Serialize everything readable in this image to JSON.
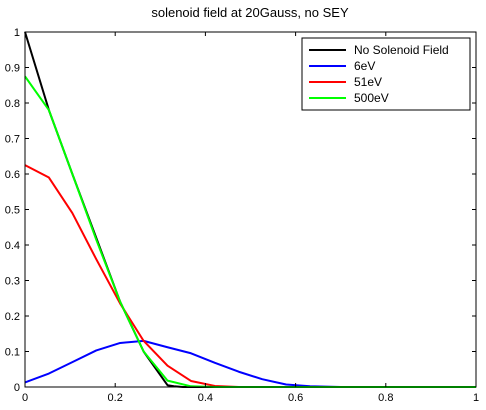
{
  "chart_data": {
    "type": "line",
    "title": "solenoid field at 20Gauss, no SEY",
    "xlabel": "",
    "ylabel": "",
    "xlim": [
      0,
      1
    ],
    "ylim": [
      0,
      1
    ],
    "xticks": [
      0,
      0.2,
      0.4,
      0.6,
      0.8,
      1
    ],
    "yticks": [
      0,
      0.1,
      0.2,
      0.3,
      0.4,
      0.5,
      0.6,
      0.7,
      0.8,
      0.9,
      1
    ],
    "xtick_labels": [
      "0",
      "0.2",
      "0.4",
      "0.6",
      "0.8",
      "1"
    ],
    "ytick_labels": [
      "0",
      "0.1",
      "0.2",
      "0.3",
      "0.4",
      "0.5",
      "0.6",
      "0.7",
      "0.8",
      "0.9",
      "1"
    ],
    "grid": false,
    "legend_position": "top-right",
    "series": [
      {
        "name": "No Solenoid Field",
        "color": "#000000",
        "x": [
          0,
          0.053,
          0.105,
          0.158,
          0.211,
          0.263,
          0.316,
          0.33,
          0.35,
          0.4,
          0.5,
          0.6,
          1.0
        ],
        "y": [
          1.0,
          0.78,
          0.6,
          0.42,
          0.24,
          0.1,
          0.005,
          0.002,
          0.0,
          0.0,
          0.0,
          0.0,
          0.0
        ]
      },
      {
        "name": "6eV",
        "color": "#0000ff",
        "x": [
          0,
          0.053,
          0.105,
          0.158,
          0.211,
          0.263,
          0.316,
          0.368,
          0.421,
          0.474,
          0.526,
          0.579,
          0.632,
          0.7,
          0.8,
          1.0
        ],
        "y": [
          0.013,
          0.038,
          0.07,
          0.103,
          0.124,
          0.13,
          0.112,
          0.095,
          0.068,
          0.043,
          0.022,
          0.007,
          0.002,
          0.0,
          0.0,
          0.0
        ]
      },
      {
        "name": "51eV",
        "color": "#ff0000",
        "x": [
          0,
          0.053,
          0.105,
          0.158,
          0.211,
          0.263,
          0.316,
          0.368,
          0.421,
          0.474,
          0.6,
          1.0
        ],
        "y": [
          0.625,
          0.59,
          0.49,
          0.36,
          0.235,
          0.13,
          0.06,
          0.017,
          0.003,
          0.0,
          0.0,
          0.0
        ]
      },
      {
        "name": "500eV",
        "color": "#00ff00",
        "x": [
          0,
          0.053,
          0.105,
          0.158,
          0.211,
          0.263,
          0.316,
          0.368,
          0.421,
          0.5,
          1.0
        ],
        "y": [
          0.875,
          0.78,
          0.6,
          0.415,
          0.24,
          0.1,
          0.018,
          0.002,
          0.0,
          0.0,
          0.0
        ]
      }
    ]
  }
}
